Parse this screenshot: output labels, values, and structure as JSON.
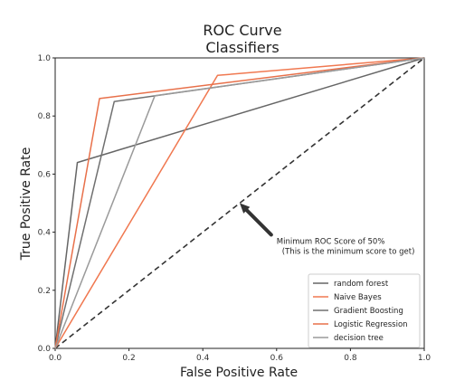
{
  "chart_data": {
    "type": "line",
    "title": "ROC Curve",
    "subtitle": "Classifiers",
    "xlabel": "False Positive Rate",
    "ylabel": "True Positive Rate",
    "xlim": [
      0,
      1
    ],
    "ylim": [
      0,
      1
    ],
    "x_ticks": [
      "0.0",
      "0.2",
      "0.4",
      "0.6",
      "0.8",
      "1.0"
    ],
    "y_ticks": [
      "0.0",
      "0.2",
      "0.4",
      "0.6",
      "0.8",
      "1.0"
    ],
    "grid": false,
    "legend_position": "bottom-right",
    "series": [
      {
        "name": "random forest",
        "color": "#666666",
        "x": [
          0,
          0.06,
          1
        ],
        "y": [
          0,
          0.64,
          1
        ]
      },
      {
        "name": "Naive Bayes",
        "color": "#f07850",
        "x": [
          0,
          0.44,
          1
        ],
        "y": [
          0,
          0.94,
          1
        ]
      },
      {
        "name": "Gradient Boosting",
        "color": "#707070",
        "x": [
          0,
          0.16,
          1
        ],
        "y": [
          0,
          0.85,
          1
        ]
      },
      {
        "name": "Logistic Regression",
        "color": "#e8704a",
        "x": [
          0,
          0.12,
          1
        ],
        "y": [
          0,
          0.86,
          1
        ]
      },
      {
        "name": "decision tree",
        "color": "#9a9a9a",
        "x": [
          0,
          0.27,
          1
        ],
        "y": [
          0,
          0.87,
          1
        ]
      }
    ],
    "baseline": {
      "x": [
        0,
        1
      ],
      "y": [
        0,
        1
      ],
      "color": "#333333",
      "style": "dashed"
    },
    "annotation": {
      "lines": [
        "Minimum ROC Score of 50%",
        "(This is the minimum score to get)"
      ],
      "arrow_tip": [
        0.5,
        0.5
      ],
      "text_at": [
        0.6,
        0.36
      ]
    }
  }
}
